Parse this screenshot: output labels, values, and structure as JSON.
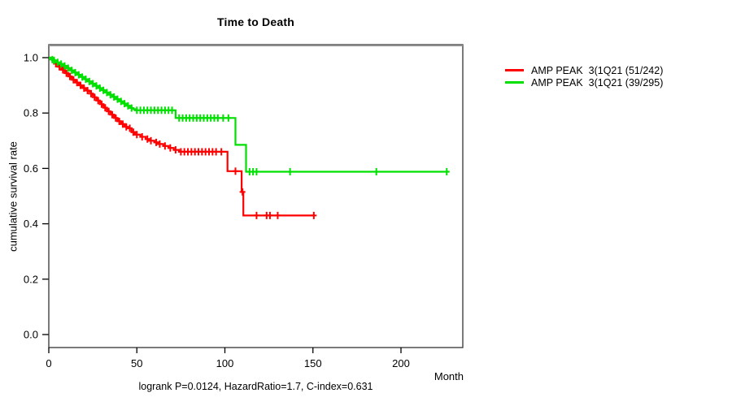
{
  "title": "Time to Death",
  "y_axis": {
    "label": "cumulative survival rate",
    "ticks": [
      0.0,
      0.2,
      0.4,
      0.6,
      0.8,
      1.0
    ]
  },
  "x_axis": {
    "label": "Month",
    "ticks": [
      0,
      50,
      100,
      150,
      200
    ]
  },
  "footnote": "logrank P=0.0124, HazardRatio=1.7, C-index=0.631",
  "legend": {
    "position": "right",
    "items": [
      {
        "label": "AMP PEAK  3(1Q21 (51/242)",
        "color": "#ff0000"
      },
      {
        "label": "AMP PEAK  3(1Q21 (39/295)",
        "color": "#00e000"
      }
    ]
  },
  "chart_data": {
    "type": "line",
    "subtype": "kaplan_meier_step",
    "title": "Time to Death",
    "xlabel": "Month",
    "ylabel": "cumulative survival rate",
    "xlim": [
      0,
      235
    ],
    "ylim": [
      0,
      1.0
    ],
    "grid": false,
    "legend_position": "right",
    "footnote": "logrank P=0.0124, HazardRatio=1.7, C-index=0.631",
    "series": [
      {
        "name": "AMP PEAK  3(1Q21 (51/242)",
        "color": "#ff0000",
        "events_over_n": "51/242",
        "end_month": 151,
        "steps": [
          [
            0,
            1.0
          ],
          [
            1,
            0.995
          ],
          [
            2,
            0.99
          ],
          [
            3,
            0.984
          ],
          [
            4,
            0.978
          ],
          [
            5,
            0.972
          ],
          [
            6,
            0.967
          ],
          [
            7,
            0.961
          ],
          [
            8,
            0.956
          ],
          [
            9,
            0.95
          ],
          [
            10,
            0.944
          ],
          [
            11,
            0.938
          ],
          [
            12,
            0.932
          ],
          [
            13,
            0.926
          ],
          [
            14,
            0.92
          ],
          [
            15,
            0.915
          ],
          [
            16,
            0.91
          ],
          [
            17,
            0.905
          ],
          [
            18,
            0.9
          ],
          [
            19,
            0.895
          ],
          [
            20,
            0.89
          ],
          [
            21,
            0.885
          ],
          [
            22,
            0.881
          ],
          [
            23,
            0.877
          ],
          [
            24,
            0.87
          ],
          [
            25,
            0.863
          ],
          [
            26,
            0.857
          ],
          [
            27,
            0.851
          ],
          [
            28,
            0.845
          ],
          [
            29,
            0.838
          ],
          [
            30,
            0.832
          ],
          [
            31,
            0.825
          ],
          [
            32,
            0.819
          ],
          [
            33,
            0.812
          ],
          [
            34,
            0.806
          ],
          [
            35,
            0.8
          ],
          [
            36,
            0.794
          ],
          [
            37,
            0.788
          ],
          [
            38,
            0.782
          ],
          [
            39,
            0.776
          ],
          [
            40,
            0.77
          ],
          [
            41,
            0.765
          ],
          [
            42,
            0.76
          ],
          [
            43,
            0.755
          ],
          [
            44,
            0.75
          ],
          [
            45,
            0.745
          ],
          [
            47,
            0.731
          ],
          [
            49,
            0.722
          ],
          [
            52,
            0.714
          ],
          [
            55,
            0.706
          ],
          [
            57,
            0.7
          ],
          [
            60,
            0.694
          ],
          [
            62,
            0.688
          ],
          [
            65,
            0.681
          ],
          [
            68,
            0.674
          ],
          [
            71,
            0.667
          ],
          [
            74,
            0.66
          ],
          [
            101.5,
            0.59
          ],
          [
            109.5,
            0.515
          ],
          [
            110.5,
            0.43
          ]
        ],
        "censor_months": [
          4,
          6,
          8,
          10,
          12,
          14,
          16,
          18,
          20,
          22,
          24,
          26,
          28,
          30,
          32,
          34,
          36,
          38,
          40,
          42,
          44,
          46,
          48,
          50,
          53,
          56,
          58,
          61,
          63,
          66,
          69,
          72,
          75,
          77,
          79,
          81,
          83,
          85,
          87,
          89,
          91,
          93,
          95,
          98,
          106,
          110,
          118,
          123.7,
          125.6,
          130,
          150.5
        ]
      },
      {
        "name": "AMP PEAK  3(1Q21 (39/295)",
        "color": "#00e000",
        "events_over_n": "39/295",
        "end_month": 227,
        "steps": [
          [
            0,
            1.0
          ],
          [
            1,
            0.997
          ],
          [
            2,
            0.993
          ],
          [
            3,
            0.99
          ],
          [
            4,
            0.987
          ],
          [
            5,
            0.983
          ],
          [
            6,
            0.98
          ],
          [
            7,
            0.977
          ],
          [
            8,
            0.973
          ],
          [
            9,
            0.97
          ],
          [
            10,
            0.966
          ],
          [
            11,
            0.962
          ],
          [
            12,
            0.958
          ],
          [
            13,
            0.954
          ],
          [
            14,
            0.95
          ],
          [
            15,
            0.946
          ],
          [
            16,
            0.942
          ],
          [
            17,
            0.938
          ],
          [
            18,
            0.934
          ],
          [
            19,
            0.93
          ],
          [
            20,
            0.926
          ],
          [
            21,
            0.922
          ],
          [
            22,
            0.918
          ],
          [
            23,
            0.914
          ],
          [
            24,
            0.91
          ],
          [
            25,
            0.906
          ],
          [
            26,
            0.902
          ],
          [
            27,
            0.898
          ],
          [
            28,
            0.894
          ],
          [
            29,
            0.89
          ],
          [
            30,
            0.886
          ],
          [
            31,
            0.882
          ],
          [
            32,
            0.878
          ],
          [
            33,
            0.874
          ],
          [
            34,
            0.87
          ],
          [
            35,
            0.866
          ],
          [
            36,
            0.862
          ],
          [
            37,
            0.858
          ],
          [
            38,
            0.854
          ],
          [
            39,
            0.85
          ],
          [
            40,
            0.846
          ],
          [
            41,
            0.842
          ],
          [
            42,
            0.838
          ],
          [
            43,
            0.834
          ],
          [
            44,
            0.83
          ],
          [
            45,
            0.826
          ],
          [
            46,
            0.822
          ],
          [
            47,
            0.818
          ],
          [
            48,
            0.814
          ],
          [
            49,
            0.81
          ],
          [
            72,
            0.782
          ],
          [
            106,
            0.685
          ],
          [
            112,
            0.588
          ]
        ],
        "censor_months": [
          2,
          3,
          5,
          7,
          9,
          11,
          13,
          15,
          17,
          19,
          21,
          23,
          25,
          27,
          29,
          31,
          33,
          35,
          37,
          39,
          41,
          43,
          45,
          47,
          50,
          52,
          54,
          56,
          58,
          60,
          62,
          64,
          66,
          68,
          70,
          74,
          76,
          78,
          80,
          82,
          84,
          86,
          88,
          90,
          92,
          94,
          96,
          99,
          102,
          114,
          116,
          118,
          137,
          186,
          226
        ]
      }
    ]
  }
}
